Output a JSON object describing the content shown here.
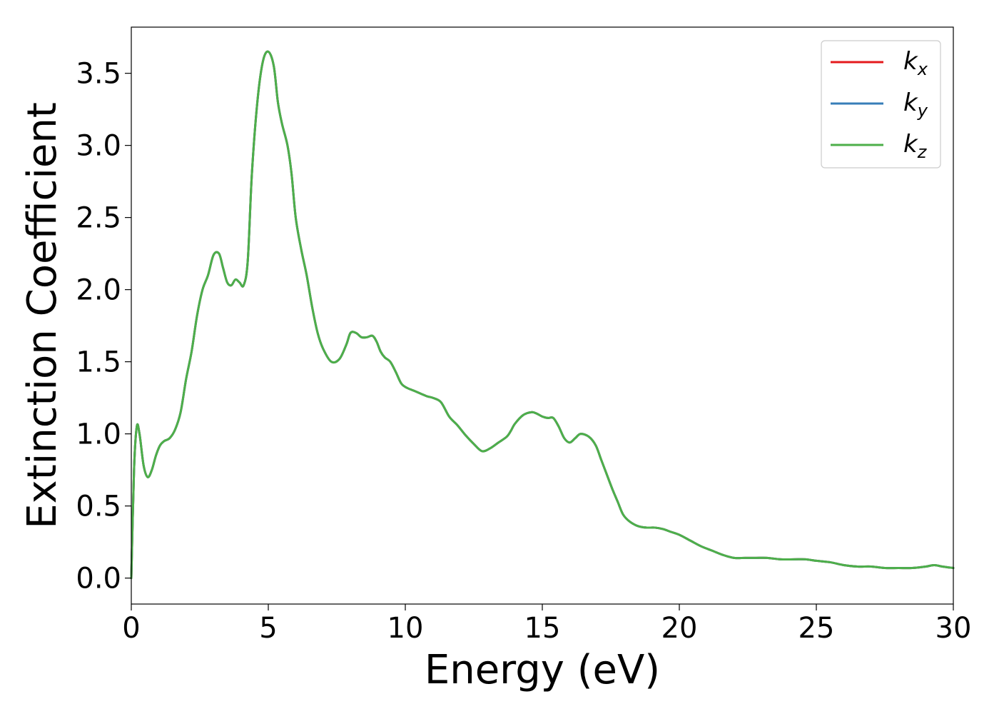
{
  "chart_data": {
    "type": "line",
    "xlabel": "Energy (eV)",
    "ylabel": "Extinction Coefficient",
    "xlim": [
      0,
      30
    ],
    "ylim": [
      -0.18,
      3.82
    ],
    "xticks": [
      0,
      5,
      10,
      15,
      20,
      25,
      30
    ],
    "xtick_labels": [
      "0",
      "5",
      "10",
      "15",
      "20",
      "25",
      "30"
    ],
    "yticks": [
      0.0,
      0.5,
      1.0,
      1.5,
      2.0,
      2.5,
      3.0,
      3.5
    ],
    "ytick_labels": [
      "0.0",
      "0.5",
      "1.0",
      "1.5",
      "2.0",
      "2.5",
      "3.0",
      "3.5"
    ],
    "grid": false,
    "legend_position": "top-right",
    "series": [
      {
        "name": "k",
        "subscript": "x",
        "color": "#e41a1c",
        "x": [
          0,
          0.1,
          0.2,
          0.3,
          0.45,
          0.6,
          0.75,
          0.9,
          1.05,
          1.2,
          1.4,
          1.6,
          1.8,
          2.0,
          2.2,
          2.4,
          2.6,
          2.8,
          3.0,
          3.2,
          3.35,
          3.5,
          3.65,
          3.8,
          3.95,
          4.1,
          4.25,
          4.4,
          4.6,
          4.8,
          5.0,
          5.2,
          5.35,
          5.5,
          5.7,
          5.85,
          6.0,
          6.2,
          6.4,
          6.6,
          6.8,
          7.0,
          7.3,
          7.6,
          7.85,
          8.0,
          8.2,
          8.4,
          8.6,
          8.8,
          8.95,
          9.1,
          9.25,
          9.45,
          9.65,
          9.85,
          10.05,
          10.3,
          10.55,
          10.8,
          11.0,
          11.3,
          11.6,
          11.9,
          12.2,
          12.5,
          12.8,
          13.1,
          13.4,
          13.7,
          13.85,
          14.0,
          14.3,
          14.6,
          14.8,
          15.0,
          15.2,
          15.4,
          15.6,
          15.8,
          16.0,
          16.2,
          16.4,
          16.7,
          16.95,
          17.15,
          17.35,
          17.55,
          17.75,
          17.95,
          18.2,
          18.5,
          18.8,
          19.1,
          19.4,
          19.7,
          20.0,
          20.4,
          20.8,
          21.2,
          21.6,
          22.0,
          22.4,
          22.8,
          23.2,
          23.7,
          24.2,
          24.6,
          25.0,
          25.5,
          26.0,
          26.5,
          27.0,
          27.5,
          28.0,
          28.5,
          29.0,
          29.3,
          29.6,
          30.0
        ],
        "y": [
          0.0,
          0.75,
          1.05,
          1.0,
          0.78,
          0.7,
          0.75,
          0.85,
          0.92,
          0.95,
          0.97,
          1.03,
          1.15,
          1.38,
          1.57,
          1.82,
          2.0,
          2.1,
          2.24,
          2.25,
          2.15,
          2.05,
          2.03,
          2.07,
          2.05,
          2.03,
          2.2,
          2.8,
          3.3,
          3.58,
          3.65,
          3.55,
          3.3,
          3.15,
          3.0,
          2.8,
          2.5,
          2.28,
          2.1,
          1.88,
          1.7,
          1.59,
          1.5,
          1.52,
          1.62,
          1.7,
          1.7,
          1.67,
          1.67,
          1.68,
          1.64,
          1.57,
          1.53,
          1.5,
          1.43,
          1.35,
          1.32,
          1.3,
          1.28,
          1.26,
          1.25,
          1.22,
          1.12,
          1.06,
          0.99,
          0.93,
          0.88,
          0.9,
          0.94,
          0.98,
          1.02,
          1.07,
          1.13,
          1.15,
          1.14,
          1.12,
          1.11,
          1.11,
          1.05,
          0.97,
          0.94,
          0.97,
          1.0,
          0.98,
          0.92,
          0.82,
          0.72,
          0.62,
          0.53,
          0.44,
          0.39,
          0.36,
          0.35,
          0.35,
          0.34,
          0.32,
          0.3,
          0.26,
          0.22,
          0.19,
          0.16,
          0.14,
          0.14,
          0.14,
          0.14,
          0.13,
          0.13,
          0.13,
          0.12,
          0.11,
          0.09,
          0.08,
          0.08,
          0.07,
          0.07,
          0.07,
          0.08,
          0.09,
          0.08,
          0.07
        ]
      },
      {
        "name": "k",
        "subscript": "y",
        "color": "#377eb8",
        "x": [
          0,
          0.1,
          0.2,
          0.3,
          0.45,
          0.6,
          0.75,
          0.9,
          1.05,
          1.2,
          1.4,
          1.6,
          1.8,
          2.0,
          2.2,
          2.4,
          2.6,
          2.8,
          3.0,
          3.2,
          3.35,
          3.5,
          3.65,
          3.8,
          3.95,
          4.1,
          4.25,
          4.4,
          4.6,
          4.8,
          5.0,
          5.2,
          5.35,
          5.5,
          5.7,
          5.85,
          6.0,
          6.2,
          6.4,
          6.6,
          6.8,
          7.0,
          7.3,
          7.6,
          7.85,
          8.0,
          8.2,
          8.4,
          8.6,
          8.8,
          8.95,
          9.1,
          9.25,
          9.45,
          9.65,
          9.85,
          10.05,
          10.3,
          10.55,
          10.8,
          11.0,
          11.3,
          11.6,
          11.9,
          12.2,
          12.5,
          12.8,
          13.1,
          13.4,
          13.7,
          13.85,
          14.0,
          14.3,
          14.6,
          14.8,
          15.0,
          15.2,
          15.4,
          15.6,
          15.8,
          16.0,
          16.2,
          16.4,
          16.7,
          16.95,
          17.15,
          17.35,
          17.55,
          17.75,
          17.95,
          18.2,
          18.5,
          18.8,
          19.1,
          19.4,
          19.7,
          20.0,
          20.4,
          20.8,
          21.2,
          21.6,
          22.0,
          22.4,
          22.8,
          23.2,
          23.7,
          24.2,
          24.6,
          25.0,
          25.5,
          26.0,
          26.5,
          27.0,
          27.5,
          28.0,
          28.5,
          29.0,
          29.3,
          29.6,
          30.0
        ],
        "y": [
          0.0,
          0.75,
          1.05,
          1.0,
          0.78,
          0.7,
          0.75,
          0.85,
          0.92,
          0.95,
          0.97,
          1.03,
          1.15,
          1.38,
          1.57,
          1.82,
          2.0,
          2.1,
          2.24,
          2.25,
          2.15,
          2.05,
          2.03,
          2.07,
          2.05,
          2.03,
          2.2,
          2.8,
          3.3,
          3.58,
          3.65,
          3.55,
          3.3,
          3.15,
          3.0,
          2.8,
          2.5,
          2.28,
          2.1,
          1.88,
          1.7,
          1.59,
          1.5,
          1.52,
          1.62,
          1.7,
          1.7,
          1.67,
          1.67,
          1.68,
          1.64,
          1.57,
          1.53,
          1.5,
          1.43,
          1.35,
          1.32,
          1.3,
          1.28,
          1.26,
          1.25,
          1.22,
          1.12,
          1.06,
          0.99,
          0.93,
          0.88,
          0.9,
          0.94,
          0.98,
          1.02,
          1.07,
          1.13,
          1.15,
          1.14,
          1.12,
          1.11,
          1.11,
          1.05,
          0.97,
          0.94,
          0.97,
          1.0,
          0.98,
          0.92,
          0.82,
          0.72,
          0.62,
          0.53,
          0.44,
          0.39,
          0.36,
          0.35,
          0.35,
          0.34,
          0.32,
          0.3,
          0.26,
          0.22,
          0.19,
          0.16,
          0.14,
          0.14,
          0.14,
          0.14,
          0.13,
          0.13,
          0.13,
          0.12,
          0.11,
          0.09,
          0.08,
          0.08,
          0.07,
          0.07,
          0.07,
          0.08,
          0.09,
          0.08,
          0.07
        ]
      },
      {
        "name": "k",
        "subscript": "z",
        "color": "#4daf4a",
        "x": [
          0,
          0.1,
          0.2,
          0.3,
          0.45,
          0.6,
          0.75,
          0.9,
          1.05,
          1.2,
          1.4,
          1.6,
          1.8,
          2.0,
          2.2,
          2.4,
          2.6,
          2.8,
          3.0,
          3.2,
          3.35,
          3.5,
          3.65,
          3.8,
          3.95,
          4.1,
          4.25,
          4.4,
          4.6,
          4.8,
          5.0,
          5.2,
          5.35,
          5.5,
          5.7,
          5.85,
          6.0,
          6.2,
          6.4,
          6.6,
          6.8,
          7.0,
          7.3,
          7.6,
          7.85,
          8.0,
          8.2,
          8.4,
          8.6,
          8.8,
          8.95,
          9.1,
          9.25,
          9.45,
          9.65,
          9.85,
          10.05,
          10.3,
          10.55,
          10.8,
          11.0,
          11.3,
          11.6,
          11.9,
          12.2,
          12.5,
          12.8,
          13.1,
          13.4,
          13.7,
          13.85,
          14.0,
          14.3,
          14.6,
          14.8,
          15.0,
          15.2,
          15.4,
          15.6,
          15.8,
          16.0,
          16.2,
          16.4,
          16.7,
          16.95,
          17.15,
          17.35,
          17.55,
          17.75,
          17.95,
          18.2,
          18.5,
          18.8,
          19.1,
          19.4,
          19.7,
          20.0,
          20.4,
          20.8,
          21.2,
          21.6,
          22.0,
          22.4,
          22.8,
          23.2,
          23.7,
          24.2,
          24.6,
          25.0,
          25.5,
          26.0,
          26.5,
          27.0,
          27.5,
          28.0,
          28.5,
          29.0,
          29.3,
          29.6,
          30.0
        ],
        "y": [
          0.0,
          0.75,
          1.05,
          1.0,
          0.78,
          0.7,
          0.75,
          0.85,
          0.92,
          0.95,
          0.97,
          1.03,
          1.15,
          1.38,
          1.57,
          1.82,
          2.0,
          2.1,
          2.24,
          2.25,
          2.15,
          2.05,
          2.03,
          2.07,
          2.05,
          2.03,
          2.2,
          2.8,
          3.3,
          3.58,
          3.65,
          3.55,
          3.3,
          3.15,
          3.0,
          2.8,
          2.5,
          2.28,
          2.1,
          1.88,
          1.7,
          1.59,
          1.5,
          1.52,
          1.62,
          1.7,
          1.7,
          1.67,
          1.67,
          1.68,
          1.64,
          1.57,
          1.53,
          1.5,
          1.43,
          1.35,
          1.32,
          1.3,
          1.28,
          1.26,
          1.25,
          1.22,
          1.12,
          1.06,
          0.99,
          0.93,
          0.88,
          0.9,
          0.94,
          0.98,
          1.02,
          1.07,
          1.13,
          1.15,
          1.14,
          1.12,
          1.11,
          1.11,
          1.05,
          0.97,
          0.94,
          0.97,
          1.0,
          0.98,
          0.92,
          0.82,
          0.72,
          0.62,
          0.53,
          0.44,
          0.39,
          0.36,
          0.35,
          0.35,
          0.34,
          0.32,
          0.3,
          0.26,
          0.22,
          0.19,
          0.16,
          0.14,
          0.14,
          0.14,
          0.14,
          0.13,
          0.13,
          0.13,
          0.12,
          0.11,
          0.09,
          0.08,
          0.08,
          0.07,
          0.07,
          0.07,
          0.08,
          0.09,
          0.08,
          0.07
        ]
      }
    ]
  }
}
